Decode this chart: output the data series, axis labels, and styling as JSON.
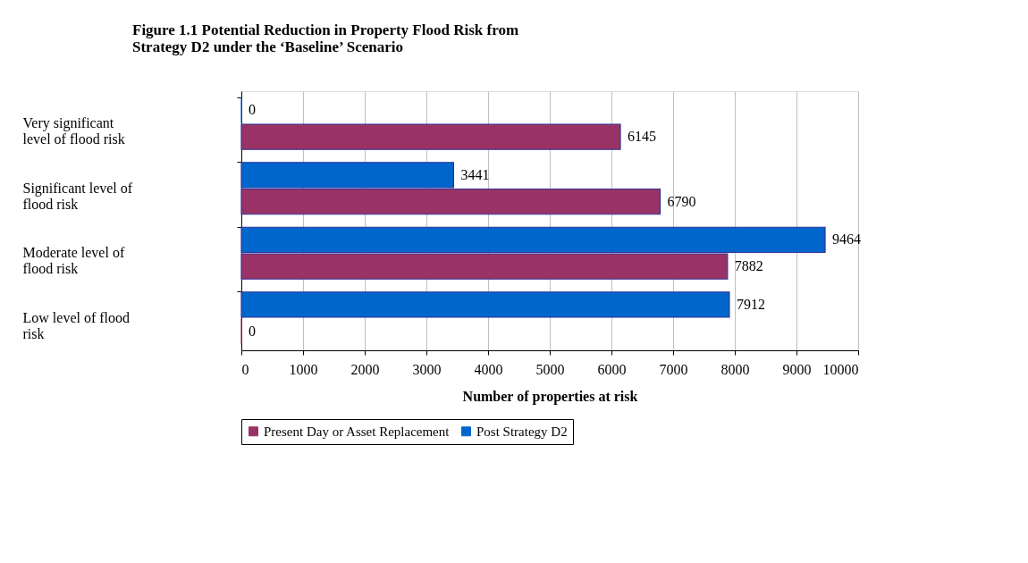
{
  "chart_data": {
    "type": "bar",
    "orientation": "horizontal",
    "title": "Figure 1.1 Potential Reduction in Property Flood Risk from Strategy D2 under the ‘Baseline’ Scenario",
    "xlabel": "Number of properties at risk",
    "categories": [
      "Very significant level of flood risk",
      "Significant level of flood risk",
      "Moderate level of flood risk",
      "Low level of flood risk"
    ],
    "series": [
      {
        "name": "Present Day or Asset Replacement",
        "color": "#993366",
        "values": [
          6145,
          6790,
          7882,
          0
        ]
      },
      {
        "name": "Post Strategy D2",
        "color": "#0066cc",
        "values": [
          0,
          3441,
          9464,
          7912
        ]
      }
    ],
    "xlim": [
      0,
      10000
    ],
    "xticks": [
      0,
      1000,
      2000,
      3000,
      4000,
      5000,
      6000,
      7000,
      8000,
      9000,
      10000
    ],
    "grid": "x",
    "legend": "bottom",
    "data_labels": true
  }
}
